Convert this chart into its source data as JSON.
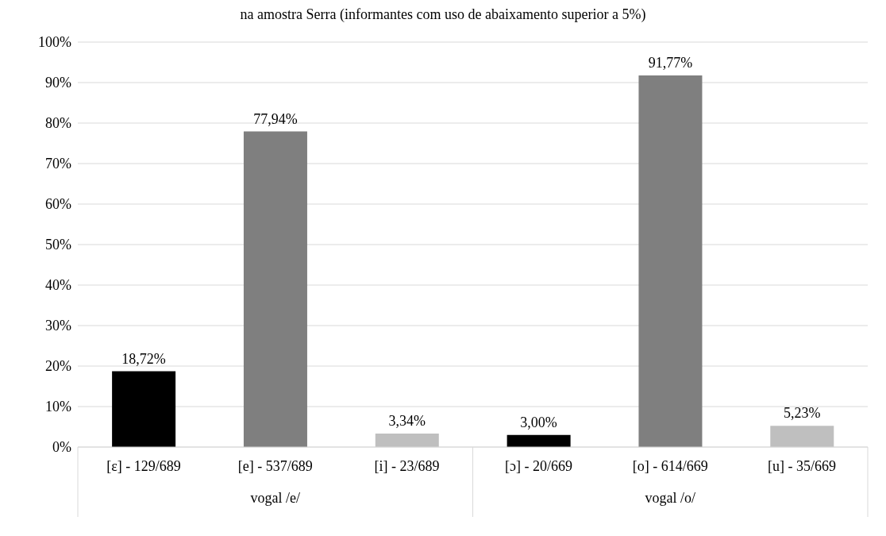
{
  "chart_data": {
    "type": "bar",
    "title": "na amostra Serra (informantes com uso de abaixamento superior a 5%)",
    "categories": [
      "[ɛ] - 129/689",
      "[e] - 537/689",
      "[i] - 23/689",
      "[ɔ] - 20/669",
      "[o] - 614/669",
      "[u] - 35/669"
    ],
    "values": [
      18.72,
      77.94,
      3.34,
      3.0,
      91.77,
      5.23
    ],
    "colors": [
      "#000000",
      "#7f7f7f",
      "#bfbfbf",
      "#000000",
      "#7f7f7f",
      "#bfbfbf"
    ],
    "value_labels": [
      "18,72%",
      "77,94%",
      "3,34%",
      "3,00%",
      "91,77%",
      "5,23%"
    ],
    "annotations": [
      "vogal /e/",
      "vogal /o/"
    ],
    "ylim": [
      0,
      100
    ],
    "yticks": [
      {
        "value": 0,
        "label": "0%"
      },
      {
        "value": 10,
        "label": "10%"
      },
      {
        "value": 20,
        "label": "20%"
      },
      {
        "value": 30,
        "label": "30%"
      },
      {
        "value": 40,
        "label": "40%"
      },
      {
        "value": 50,
        "label": "50%"
      },
      {
        "value": 60,
        "label": "60%"
      },
      {
        "value": 70,
        "label": "70%"
      },
      {
        "value": 80,
        "label": "80%"
      },
      {
        "value": 90,
        "label": "90%"
      },
      {
        "value": 100,
        "label": "100%"
      }
    ],
    "grid": "y",
    "legend": false
  }
}
